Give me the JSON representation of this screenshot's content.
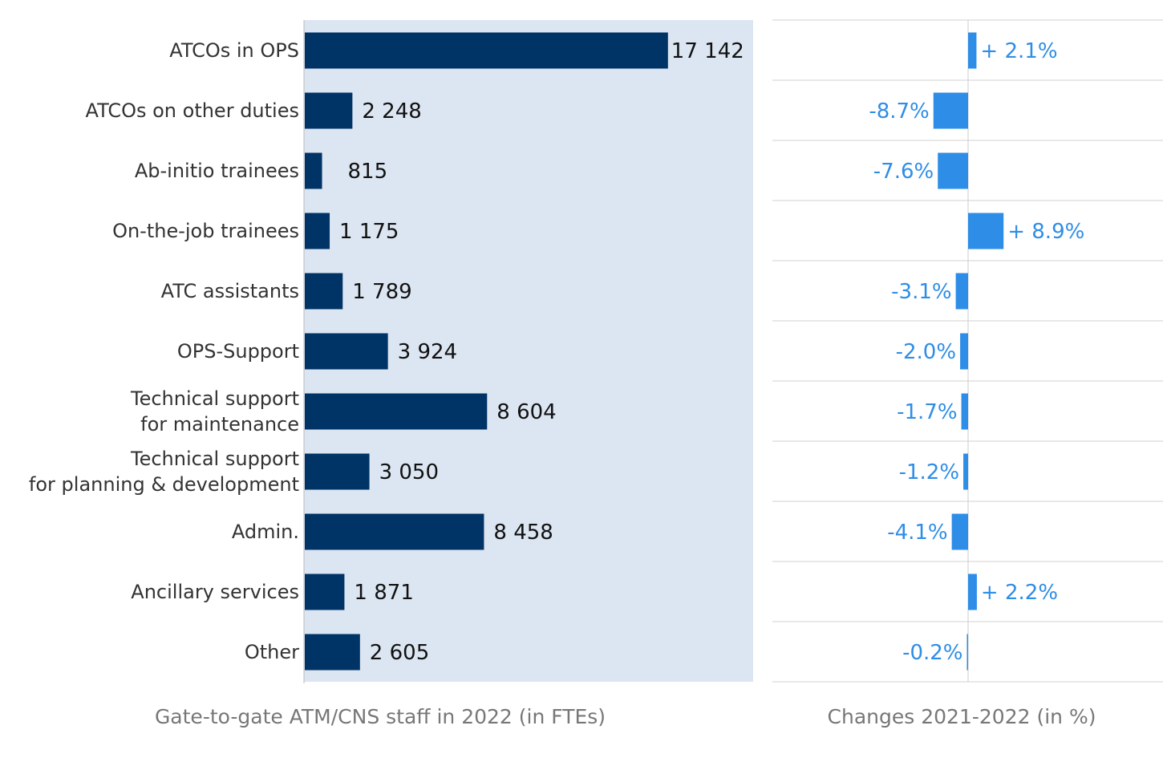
{
  "chart_data": [
    {
      "type": "bar",
      "orientation": "horizontal",
      "xlabel": "Gate-to-gate ATM/CNS staff in 2022 (in FTEs)",
      "categories": [
        "ATCOs in OPS",
        "ATCOs on other duties",
        "Ab-initio trainees",
        "On-the-job trainees",
        "ATC assistants",
        "OPS-Support",
        "Technical support\nfor maintenance",
        "Technical support\nfor planning & development",
        "Admin.",
        "Ancillary services",
        "Other"
      ],
      "values": [
        17142,
        2248,
        815,
        1175,
        1789,
        3924,
        8604,
        3050,
        8458,
        1871,
        2605
      ],
      "value_labels": [
        "17 142",
        "2 248",
        "815",
        "1 175",
        "1 789",
        "3 924",
        "8 604",
        "3 050",
        "8 458",
        "1 871",
        "2 605"
      ],
      "xlim": [
        0,
        21200
      ],
      "grid": false,
      "colors": {
        "bar": "#003366",
        "plot_background": "#dce6f2"
      }
    },
    {
      "type": "bar",
      "orientation": "horizontal",
      "xlabel": "Changes 2021-2022 (in %)",
      "categories": [
        "ATCOs in OPS",
        "ATCOs on other duties",
        "Ab-initio trainees",
        "On-the-job trainees",
        "ATC assistants",
        "OPS-Support",
        "Technical support\nfor maintenance",
        "Technical support\nfor planning & development",
        "Admin.",
        "Ancillary services",
        "Other"
      ],
      "values": [
        2.1,
        -8.7,
        -7.6,
        8.9,
        -3.1,
        -2.0,
        -1.7,
        -1.2,
        -4.1,
        2.2,
        -0.2
      ],
      "value_labels": [
        "+ 2.1%",
        "-8.7%",
        "-7.6%",
        "+ 8.9%",
        "-3.1%",
        "-2.0%",
        "-1.7%",
        "-1.2%",
        "-4.1%",
        "+ 2.2%",
        "-0.2%"
      ],
      "xlim": [
        -49,
        49
      ],
      "grid": true,
      "colors": {
        "bar": "#2e8de6",
        "label": "#2e8de6",
        "grid": "#d0d0d0"
      }
    }
  ]
}
